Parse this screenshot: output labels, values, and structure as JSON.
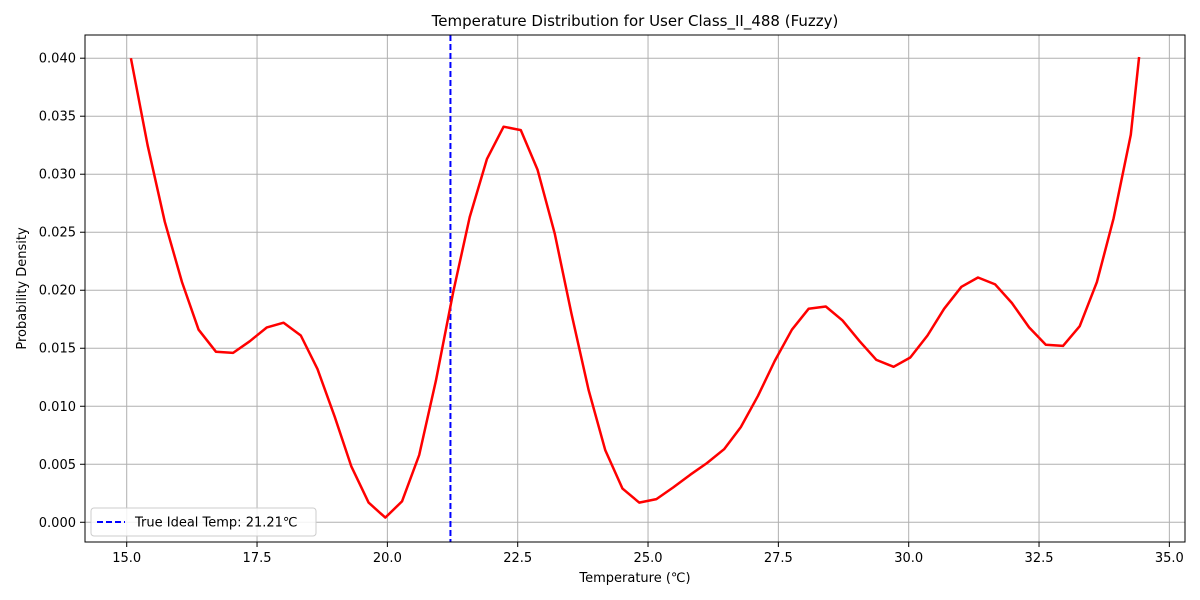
{
  "chart_data": {
    "type": "line",
    "title": "Temperature Distribution for User Class_II_488 (Fuzzy)",
    "xlabel": "Temperature (℃)",
    "ylabel": "Probability Density",
    "xlim": [
      14.2,
      35.3
    ],
    "ylim": [
      -0.0017,
      0.042
    ],
    "grid": true,
    "legend_position": "lower-left",
    "x_ticks": [
      15.0,
      17.5,
      20.0,
      22.5,
      25.0,
      27.5,
      30.0,
      32.5,
      35.0
    ],
    "x_tick_labels": [
      "15.0",
      "17.5",
      "20.0",
      "22.5",
      "25.0",
      "27.5",
      "30.0",
      "32.5",
      "35.0"
    ],
    "y_ticks": [
      0.0,
      0.005,
      0.01,
      0.015,
      0.02,
      0.025,
      0.03,
      0.035,
      0.04
    ],
    "y_tick_labels": [
      "0.000",
      "0.005",
      "0.010",
      "0.015",
      "0.020",
      "0.025",
      "0.030",
      "0.035",
      "0.040"
    ],
    "series": [
      {
        "color": "#ff0000",
        "x": [
          15.08,
          15.4,
          15.73,
          16.06,
          16.38,
          16.71,
          17.04,
          17.36,
          17.69,
          18.01,
          18.34,
          18.66,
          18.99,
          19.31,
          19.64,
          19.96,
          20.28,
          20.61,
          20.93,
          21.26,
          21.58,
          21.91,
          22.23,
          22.56,
          22.88,
          23.21,
          23.53,
          23.86,
          24.18,
          24.51,
          24.83,
          25.16,
          25.48,
          25.81,
          26.13,
          26.46,
          26.78,
          27.11,
          27.43,
          27.76,
          28.08,
          28.41,
          28.73,
          29.06,
          29.38,
          29.71,
          30.03,
          30.36,
          30.68,
          31.01,
          31.33,
          31.66,
          31.98,
          32.31,
          32.63,
          32.96,
          33.28,
          33.61,
          33.93,
          34.26,
          34.42
        ],
        "y": [
          0.04,
          0.0325,
          0.0259,
          0.0207,
          0.0166,
          0.0147,
          0.0146,
          0.0156,
          0.0168,
          0.0172,
          0.0161,
          0.0132,
          0.0091,
          0.0048,
          0.0017,
          0.0004,
          0.0018,
          0.0058,
          0.0122,
          0.0198,
          0.0263,
          0.0313,
          0.0341,
          0.0338,
          0.0304,
          0.0249,
          0.018,
          0.0114,
          0.0062,
          0.0029,
          0.0017,
          0.002,
          0.003,
          0.0041,
          0.0051,
          0.0063,
          0.0082,
          0.0109,
          0.0139,
          0.0166,
          0.0184,
          0.0186,
          0.0174,
          0.0156,
          0.014,
          0.0134,
          0.0142,
          0.0161,
          0.0184,
          0.0203,
          0.0211,
          0.0205,
          0.0189,
          0.0168,
          0.0153,
          0.0152,
          0.0169,
          0.0207,
          0.0262,
          0.0334,
          0.0401
        ]
      }
    ],
    "vlines": [
      {
        "x": 21.21,
        "color": "#0000ff",
        "style": "dashed",
        "label": "True Ideal Temp: 21.21℃"
      }
    ]
  }
}
